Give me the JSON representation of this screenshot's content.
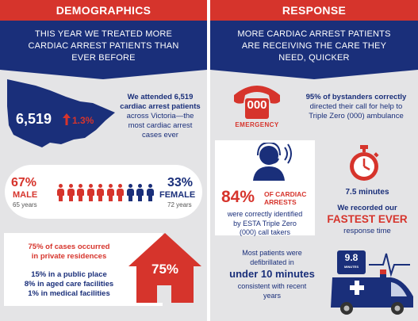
{
  "demographics": {
    "header": "DEMOGRAPHICS",
    "banner": [
      "THIS YEAR WE TREATED MORE",
      "CARDIAC ARREST PATIENTS THAN",
      "EVER BEFORE"
    ],
    "map": {
      "count": "6,519",
      "change": "1.3%",
      "text": [
        "We attended 6,519",
        "cardiac arrest patients",
        "across Victoria—the",
        "most cardiac arrest",
        "cases ever"
      ]
    },
    "gender": {
      "male_pct": "67%",
      "male_label": "MALE",
      "male_age": "65 years",
      "female_pct": "33%",
      "female_label": "FEMALE",
      "female_age": "72 years",
      "male_share": 0.67
    },
    "location": {
      "headline": [
        "75% of cases occurred",
        "in private residences"
      ],
      "details": [
        "15% in a public place",
        "8% in aged care facilities",
        "1% in medical facilities"
      ],
      "house_pct": "75%"
    }
  },
  "response": {
    "header": "RESPONSE",
    "banner": [
      "MORE CARDIAC ARREST PATIENTS",
      "ARE RECEIVING THE CARE THEY",
      "NEED, QUICKER"
    ],
    "emergency": {
      "phone_number": "000",
      "phone_label": "EMERGENCY",
      "text": [
        "95% of bystanders correctly",
        "directed their call for help to",
        "Triple Zero (000) ambulance"
      ]
    },
    "calltakers": {
      "pct": "84%",
      "label": [
        "OF CARDIAC",
        "ARRESTS"
      ],
      "text": [
        "were correctly identified",
        "by ESTA Triple Zero",
        "(000) call takers"
      ]
    },
    "response_time": {
      "minutes": "7.5 minutes",
      "line1": "We recorded our",
      "fastest": "FASTEST EVER",
      "line3": "response time"
    },
    "defib": {
      "line1": [
        "Most patients were",
        "defibrillated in"
      ],
      "big": "under 10 minutes",
      "line3": [
        "consistent with recent",
        "years"
      ],
      "screen_value": "9.8",
      "screen_unit": "MINUTES"
    }
  },
  "colors": {
    "red": "#d6342c",
    "navy": "#1a2f7a",
    "panel": "#e4e4e6"
  }
}
